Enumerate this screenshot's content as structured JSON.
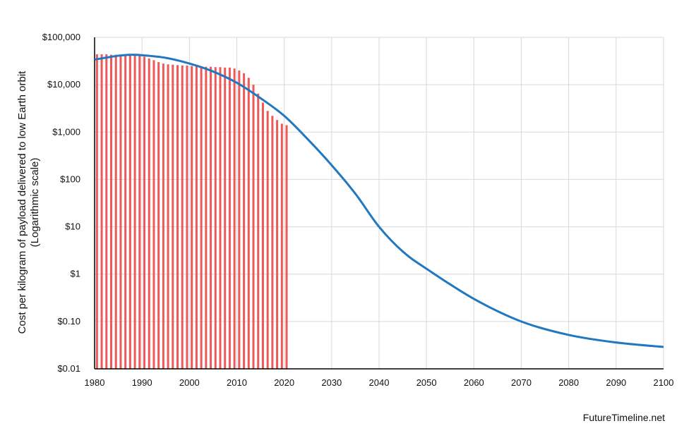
{
  "chart_data": {
    "type": "bar+line",
    "title": "",
    "xlabel": "",
    "ylabel": "Cost per kilogram of payload delivered to low Earth orbit",
    "ylabel_note": "(Logarithmic scale)",
    "y_scale": "log",
    "xlim": [
      1980,
      2100
    ],
    "ylim": [
      0.01,
      100000
    ],
    "x_ticks": [
      "1980",
      "1990",
      "2000",
      "2010",
      "2020",
      "2030",
      "2040",
      "2050",
      "2060",
      "2070",
      "2080",
      "2090",
      "2100"
    ],
    "y_ticks": [
      {
        "value": 100000,
        "label": "$100,000"
      },
      {
        "value": 10000,
        "label": "$10,000"
      },
      {
        "value": 1000,
        "label": "$1,000"
      },
      {
        "value": 100,
        "label": "$100"
      },
      {
        "value": 10,
        "label": "$10"
      },
      {
        "value": 1,
        "label": "$1"
      },
      {
        "value": 0.1,
        "label": "$0.10"
      },
      {
        "value": 0.01,
        "label": "$0.01"
      }
    ],
    "grid": true,
    "bars": {
      "color": "#ee5a5a",
      "years": [
        1980,
        1981,
        1982,
        1983,
        1984,
        1985,
        1986,
        1987,
        1988,
        1989,
        1990,
        1991,
        1992,
        1993,
        1994,
        1995,
        1996,
        1997,
        1998,
        1999,
        2000,
        2001,
        2002,
        2003,
        2004,
        2005,
        2006,
        2007,
        2008,
        2009,
        2010,
        2011,
        2012,
        2013,
        2014,
        2015,
        2016,
        2017,
        2018,
        2019,
        2020
      ],
      "values": [
        44000,
        44000,
        44000,
        43000,
        43000,
        42000,
        42000,
        42000,
        42000,
        41000,
        39000,
        36000,
        33000,
        30000,
        28000,
        27000,
        26500,
        26000,
        25500,
        25500,
        25000,
        24500,
        24500,
        24000,
        24000,
        23500,
        23500,
        23000,
        23000,
        22000,
        20000,
        17500,
        14000,
        10000,
        6500,
        4200,
        2800,
        2200,
        1800,
        1500,
        1400
      ]
    },
    "line": {
      "color": "#1f78c1",
      "x": [
        1980,
        1985,
        1988,
        1990,
        1995,
        2000,
        2005,
        2010,
        2015,
        2020,
        2025,
        2030,
        2035,
        2040,
        2045,
        2050,
        2060,
        2070,
        2080,
        2090,
        2100
      ],
      "y": [
        34000,
        41000,
        43000,
        42000,
        37000,
        28000,
        19000,
        11000,
        5200,
        2200,
        700,
        200,
        50,
        10,
        3,
        1.3,
        0.3,
        0.1,
        0.052,
        0.036,
        0.029
      ]
    }
  },
  "credit": "FutureTimeline.net"
}
